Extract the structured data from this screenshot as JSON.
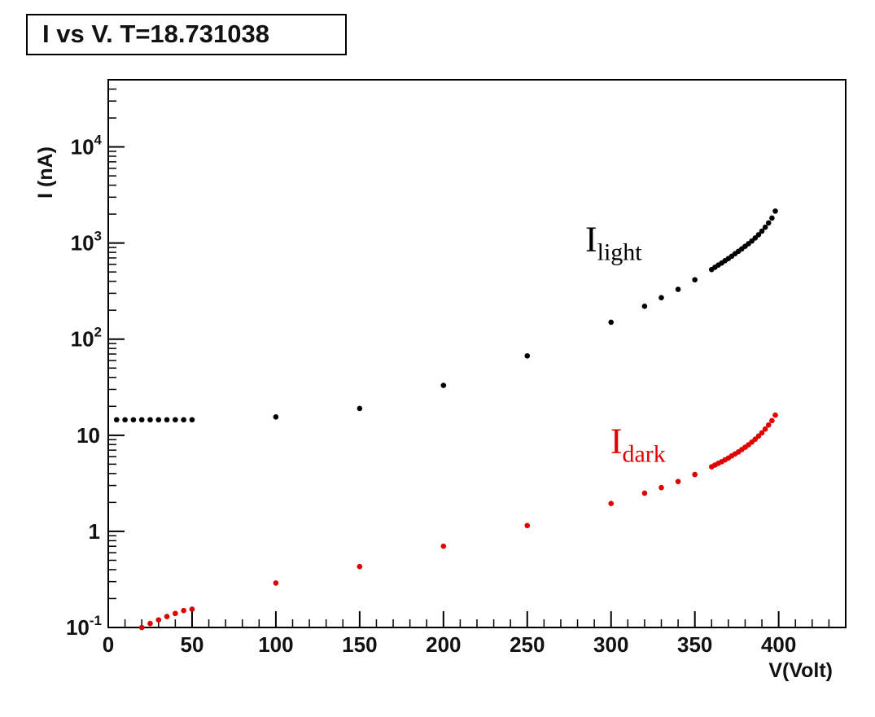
{
  "chart_data": {
    "type": "scatter",
    "title": "I vs V. T=18.731038",
    "xlabel": "V(Volt)",
    "ylabel": "I (nA)",
    "xlim": [
      0,
      440
    ],
    "ylim": [
      0.1,
      50000
    ],
    "yscale": "log",
    "grid": false,
    "legend": "none",
    "x_ticks": [
      0,
      50,
      100,
      150,
      200,
      250,
      300,
      350,
      400
    ],
    "x_tick_labels": [
      "0",
      "50",
      "100",
      "150",
      "200",
      "250",
      "300",
      "350",
      "400"
    ],
    "y_ticks": [
      {
        "value": 0.1,
        "base": "10",
        "exp": "-1"
      },
      {
        "value": 1,
        "base": "1",
        "exp": ""
      },
      {
        "value": 10,
        "base": "10",
        "exp": ""
      },
      {
        "value": 100,
        "base": "10",
        "exp": "2"
      },
      {
        "value": 1000,
        "base": "10",
        "exp": "3"
      },
      {
        "value": 10000,
        "base": "10",
        "exp": "4"
      }
    ],
    "annotations": [
      {
        "main": "I",
        "sub": "light",
        "color": "#000000",
        "x": 270,
        "y": 1000
      },
      {
        "main": "I",
        "sub": "dark",
        "color": "#e00000",
        "x": 285,
        "y": 8
      }
    ],
    "series": [
      {
        "color": "#000000",
        "x": [
          5,
          10,
          15,
          20,
          25,
          30,
          35,
          40,
          45,
          50,
          100,
          150,
          200,
          250,
          300,
          320,
          330,
          340,
          350,
          360,
          362,
          364,
          366,
          368,
          370,
          372,
          374,
          376,
          378,
          380,
          382,
          384,
          386,
          388,
          390,
          392,
          394,
          396,
          398
        ],
        "y": [
          14.5,
          14.5,
          14.5,
          14.5,
          14.5,
          14.5,
          14.5,
          14.5,
          14.5,
          14.5,
          15.5,
          19,
          33,
          67,
          150,
          220,
          270,
          330,
          415,
          530,
          560,
          590,
          620,
          655,
          690,
          730,
          775,
          820,
          870,
          925,
          985,
          1050,
          1130,
          1220,
          1330,
          1460,
          1620,
          1820,
          2150
        ]
      },
      {
        "color": "#e00000",
        "x": [
          20,
          25,
          30,
          35,
          40,
          45,
          50,
          100,
          150,
          200,
          250,
          300,
          320,
          330,
          340,
          350,
          360,
          362,
          364,
          366,
          368,
          370,
          372,
          374,
          376,
          378,
          380,
          382,
          384,
          386,
          388,
          390,
          392,
          394,
          396,
          398
        ],
        "y": [
          0.1,
          0.11,
          0.12,
          0.13,
          0.14,
          0.15,
          0.155,
          0.29,
          0.43,
          0.7,
          1.15,
          1.95,
          2.5,
          2.85,
          3.3,
          3.9,
          4.7,
          4.9,
          5.1,
          5.3,
          5.55,
          5.8,
          6.1,
          6.4,
          6.7,
          7.1,
          7.5,
          7.95,
          8.5,
          9.1,
          9.8,
          10.6,
          11.6,
          12.8,
          14.2,
          16.2
        ]
      }
    ]
  }
}
